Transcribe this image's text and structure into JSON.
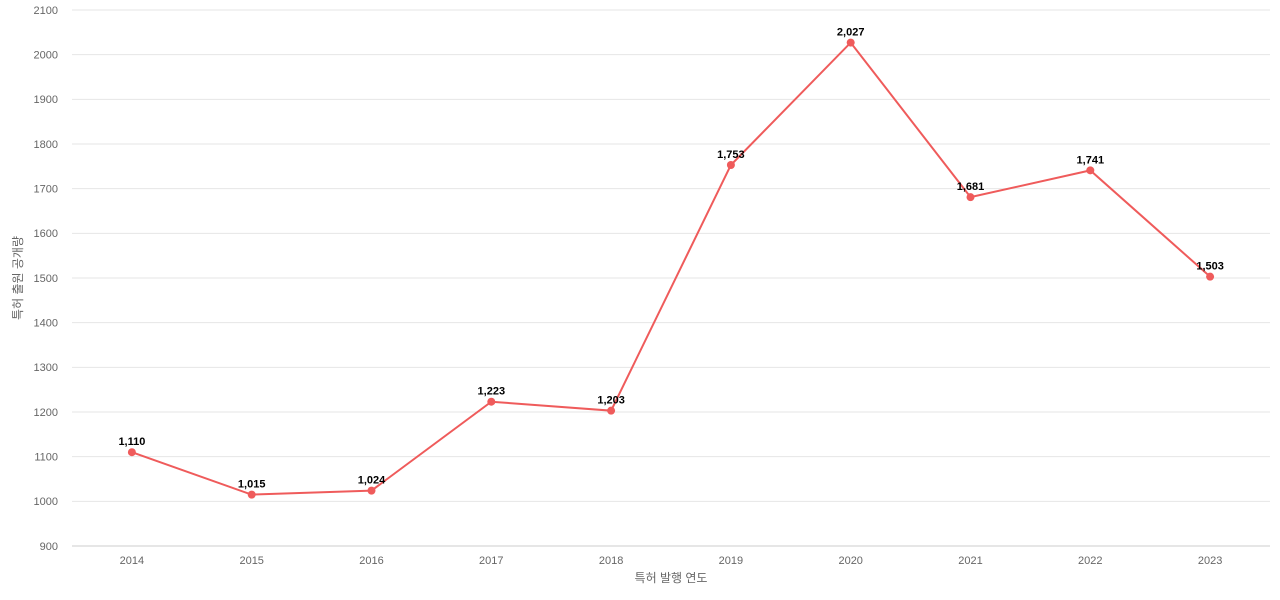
{
  "chart_data": {
    "type": "line",
    "x_label": "특허 발행 연도",
    "y_label": "특허 출원 공개량",
    "categories": [
      "2014",
      "2015",
      "2016",
      "2017",
      "2018",
      "2019",
      "2020",
      "2021",
      "2022",
      "2023"
    ],
    "values": [
      1110,
      1015,
      1024,
      1223,
      1203,
      1753,
      2027,
      1681,
      1741,
      1503
    ],
    "value_labels": [
      "1,110",
      "1,015",
      "1,024",
      "1,223",
      "1,203",
      "1,753",
      "2,027",
      "1,681",
      "1,741",
      "1,503"
    ],
    "color": "#ef5b5b",
    "ylim": [
      900,
      2100
    ],
    "yticks": [
      900,
      1000,
      1100,
      1200,
      1300,
      1400,
      1500,
      1600,
      1700,
      1800,
      1900,
      2000,
      2100
    ],
    "grid": true
  }
}
